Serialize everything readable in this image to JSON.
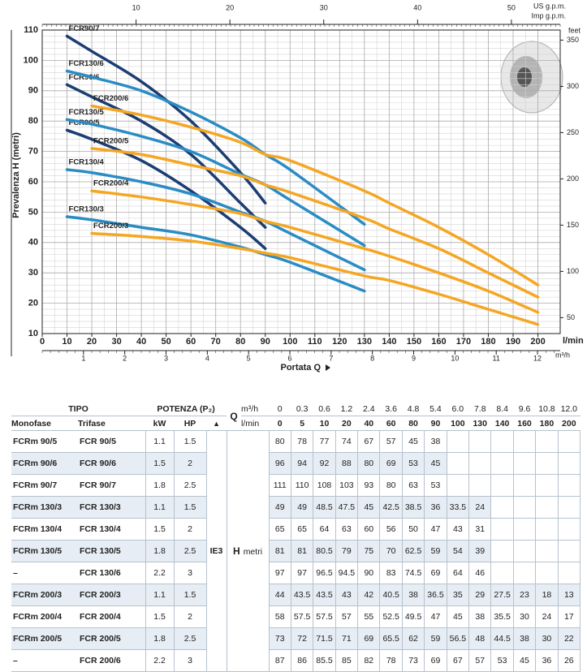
{
  "chart_data": {
    "type": "line",
    "ylabel": "Prevalenza  H  (metri)",
    "xlabel": "Portata Q",
    "x_unit": "l/min",
    "y2label": "feet",
    "x": [
      10,
      20,
      40,
      60,
      80,
      90,
      100,
      130,
      140,
      160,
      180,
      200
    ],
    "xlim": [
      0,
      209
    ],
    "xticks": [
      0,
      10,
      20,
      30,
      40,
      50,
      60,
      70,
      80,
      90,
      100,
      110,
      120,
      130,
      140,
      150,
      160,
      170,
      180,
      190,
      200
    ],
    "ylim": [
      10,
      110
    ],
    "yticks": [
      10,
      20,
      30,
      40,
      50,
      60,
      70,
      80,
      90,
      100,
      110
    ],
    "y2lim": [
      32.8,
      360.9
    ],
    "y2ticks": [
      50,
      100,
      150,
      200,
      250,
      300,
      350
    ],
    "top_axis": {
      "label": "US g.p.m.",
      "label2": "Imp g.p.m.",
      "lim": [
        0,
        55.2
      ],
      "ticks": [
        10,
        20,
        30,
        40,
        50
      ]
    },
    "bottom_axis2": {
      "label": "m³/h",
      "lim": [
        0,
        12.55
      ],
      "ticks": [
        1,
        2,
        3,
        4,
        5,
        6,
        7,
        8,
        9,
        10,
        11,
        12
      ]
    },
    "grid": true,
    "series": [
      {
        "name": "FCR90/7",
        "color": "#1b3d73",
        "values": [
          108,
          103,
          93,
          80,
          63,
          53,
          null,
          null,
          null,
          null,
          null,
          null
        ]
      },
      {
        "name": "FCR90/6",
        "color": "#1b3d73",
        "values": [
          92,
          88,
          80,
          69,
          53,
          45,
          null,
          null,
          null,
          null,
          null,
          null
        ]
      },
      {
        "name": "FCR90/5",
        "color": "#1b3d73",
        "values": [
          77,
          74,
          67,
          57,
          45,
          38,
          null,
          null,
          null,
          null,
          null,
          null
        ]
      },
      {
        "name": "FCR130/6",
        "color": "#2a8cc4",
        "values": [
          96.5,
          94.5,
          90,
          83,
          74.5,
          69,
          64,
          46,
          null,
          null,
          null,
          null
        ]
      },
      {
        "name": "FCR130/5",
        "color": "#2a8cc4",
        "values": [
          80.5,
          79,
          75,
          70,
          62.5,
          59,
          54,
          39,
          null,
          null,
          null,
          null
        ]
      },
      {
        "name": "FCR130/4",
        "color": "#2a8cc4",
        "values": [
          64,
          63,
          60,
          56,
          50,
          47,
          43,
          31,
          null,
          null,
          null,
          null
        ]
      },
      {
        "name": "FCR130/3",
        "color": "#2a8cc4",
        "values": [
          48.5,
          47.5,
          45,
          42.5,
          38.5,
          36,
          33.5,
          24,
          null,
          null,
          null,
          null
        ]
      },
      {
        "name": "FCR200/6",
        "color": "#f5a623",
        "values": [
          null,
          85,
          82,
          78,
          73,
          69,
          67,
          57,
          53,
          45,
          36,
          26
        ]
      },
      {
        "name": "FCR200/5",
        "color": "#f5a623",
        "values": [
          null,
          71,
          69,
          65.5,
          62,
          59,
          56.5,
          48,
          44.5,
          38,
          30,
          22
        ]
      },
      {
        "name": "FCR200/4",
        "color": "#f5a623",
        "values": [
          null,
          57,
          55,
          52.5,
          49.5,
          47,
          45,
          38,
          35.5,
          30,
          24,
          17
        ]
      },
      {
        "name": "FCR200/3",
        "color": "#f5a623",
        "values": [
          null,
          43,
          42,
          40.5,
          38,
          36.5,
          35,
          29,
          27.5,
          23,
          18,
          13
        ]
      }
    ]
  },
  "table": {
    "header": {
      "tipo": "TIPO",
      "potenza": "POTENZA (P₂)",
      "monofase": "Monofase",
      "trifase": "Trifase",
      "kw": "kW",
      "hp": "HP",
      "triangle": "▲",
      "q": "Q",
      "m3h": "m³/h",
      "lmin": "l/min",
      "ie3": "IE3",
      "h": "H",
      "metri": "metri"
    },
    "q_m3h": [
      "0",
      "0.3",
      "0.6",
      "1.2",
      "2.4",
      "3.6",
      "4.8",
      "5.4",
      "6.0",
      "7.8",
      "8.4",
      "9.6",
      "10.8",
      "12.0"
    ],
    "q_lmin": [
      0,
      5,
      10,
      20,
      40,
      60,
      80,
      90,
      100,
      130,
      140,
      160,
      180,
      200
    ],
    "rows": [
      {
        "mono": "FCRm 90/5",
        "tri": "FCR 90/5",
        "kw": 1.1,
        "hp": 1.5,
        "h": [
          80,
          78,
          77,
          74,
          67,
          57,
          45,
          38
        ]
      },
      {
        "mono": "FCRm 90/6",
        "tri": "FCR 90/6",
        "kw": 1.5,
        "hp": 2,
        "h": [
          96,
          94,
          92,
          88,
          80,
          69,
          53,
          45
        ]
      },
      {
        "mono": "FCRm 90/7",
        "tri": "FCR 90/7",
        "kw": 1.8,
        "hp": 2.5,
        "h": [
          111,
          110,
          108,
          103,
          93,
          80,
          63,
          53
        ]
      },
      {
        "mono": "FCRm 130/3",
        "tri": "FCR 130/3",
        "kw": 1.1,
        "hp": 1.5,
        "h": [
          49,
          49,
          48.5,
          47.5,
          45,
          42.5,
          38.5,
          36,
          33.5,
          24
        ]
      },
      {
        "mono": "FCRm 130/4",
        "tri": "FCR 130/4",
        "kw": 1.5,
        "hp": 2,
        "h": [
          65,
          65,
          64,
          63,
          60,
          56,
          50,
          47,
          43,
          31
        ]
      },
      {
        "mono": "FCRm 130/5",
        "tri": "FCR 130/5",
        "kw": 1.8,
        "hp": 2.5,
        "h": [
          81,
          81,
          80.5,
          79,
          75,
          70,
          62.5,
          59,
          54,
          39
        ]
      },
      {
        "mono": "–",
        "tri": "FCR 130/6",
        "kw": 2.2,
        "hp": 3,
        "h": [
          97,
          97,
          96.5,
          94.5,
          90,
          83,
          74.5,
          69,
          64,
          46
        ]
      },
      {
        "mono": "FCRm 200/3",
        "tri": "FCR 200/3",
        "kw": 1.1,
        "hp": 1.5,
        "h": [
          44,
          43.5,
          43.5,
          43,
          42,
          40.5,
          38,
          36.5,
          35,
          29,
          27.5,
          23,
          18,
          13
        ]
      },
      {
        "mono": "FCRm 200/4",
        "tri": "FCR 200/4",
        "kw": 1.5,
        "hp": 2,
        "h": [
          58,
          57.5,
          57.5,
          57,
          55,
          52.5,
          49.5,
          47,
          45,
          38,
          35.5,
          30,
          24,
          17
        ]
      },
      {
        "mono": "FCRm 200/5",
        "tri": "FCR 200/5",
        "kw": 1.8,
        "hp": 2.5,
        "h": [
          73,
          72,
          71.5,
          71,
          69,
          65.5,
          62,
          59,
          56.5,
          48,
          44.5,
          38,
          30,
          22
        ]
      },
      {
        "mono": "–",
        "tri": "FCR 200/6",
        "kw": 2.2,
        "hp": 3,
        "h": [
          87,
          86,
          85.5,
          85,
          82,
          78,
          73,
          69,
          67,
          57,
          53,
          45,
          36,
          26
        ]
      }
    ]
  }
}
